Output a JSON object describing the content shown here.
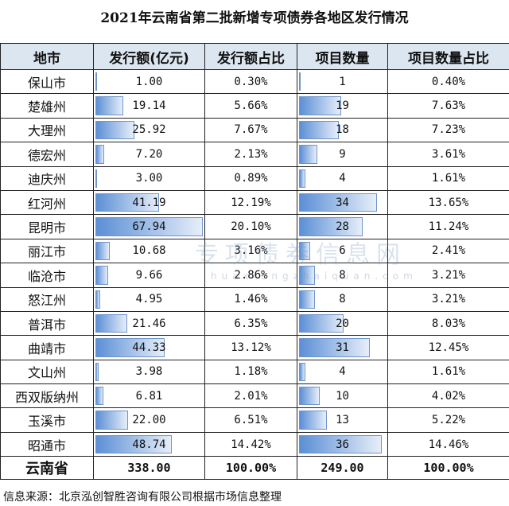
{
  "title": "2021年云南省第二批新增专项债券各地区发行情况",
  "headers": [
    "地市",
    "发行额(亿元)",
    "发行额占比",
    "项目数量",
    "项目数量占比"
  ],
  "rows": [
    {
      "name": "保山市",
      "amount": "1.00",
      "amount_pct": "0.30%",
      "count": "1",
      "count_pct": "0.40%"
    },
    {
      "name": "楚雄州",
      "amount": "19.14",
      "amount_pct": "5.66%",
      "count": "19",
      "count_pct": "7.63%"
    },
    {
      "name": "大理州",
      "amount": "25.92",
      "amount_pct": "7.67%",
      "count": "18",
      "count_pct": "7.23%"
    },
    {
      "name": "德宏州",
      "amount": "7.20",
      "amount_pct": "2.13%",
      "count": "9",
      "count_pct": "3.61%"
    },
    {
      "name": "迪庆州",
      "amount": "3.00",
      "amount_pct": "0.89%",
      "count": "4",
      "count_pct": "1.61%"
    },
    {
      "name": "红河州",
      "amount": "41.19",
      "amount_pct": "12.19%",
      "count": "34",
      "count_pct": "13.65%"
    },
    {
      "name": "昆明市",
      "amount": "67.94",
      "amount_pct": "20.10%",
      "count": "28",
      "count_pct": "11.24%"
    },
    {
      "name": "丽江市",
      "amount": "10.68",
      "amount_pct": "3.16%",
      "count": "6",
      "count_pct": "2.41%"
    },
    {
      "name": "临沧市",
      "amount": "9.66",
      "amount_pct": "2.86%",
      "count": "8",
      "count_pct": "3.21%"
    },
    {
      "name": "怒江州",
      "amount": "4.95",
      "amount_pct": "1.46%",
      "count": "8",
      "count_pct": "3.21%"
    },
    {
      "name": "普洱市",
      "amount": "21.46",
      "amount_pct": "6.35%",
      "count": "20",
      "count_pct": "8.03%"
    },
    {
      "name": "曲靖市",
      "amount": "44.33",
      "amount_pct": "13.12%",
      "count": "31",
      "count_pct": "12.45%"
    },
    {
      "name": "文山州",
      "amount": "3.98",
      "amount_pct": "1.18%",
      "count": "4",
      "count_pct": "1.61%"
    },
    {
      "name": "西双版纳州",
      "amount": "6.81",
      "amount_pct": "2.01%",
      "count": "10",
      "count_pct": "4.02%"
    },
    {
      "name": "玉溪市",
      "amount": "22.00",
      "amount_pct": "6.51%",
      "count": "13",
      "count_pct": "5.22%"
    },
    {
      "name": "昭通市",
      "amount": "48.74",
      "amount_pct": "14.42%",
      "count": "36",
      "count_pct": "14.46%"
    }
  ],
  "total": {
    "name": "云南省",
    "amount": "338.00",
    "amount_pct": "100.00%",
    "count": "249.00",
    "count_pct": "100.00%"
  },
  "footer": "信息来源：北京泓创智胜咨询有限公司根据市场信息整理",
  "watermark": {
    "text": "专项债券信息网",
    "url": "huaxiangzhaiquan.com"
  },
  "colors": {
    "header_bg": "#dce6f1",
    "bar": "#5b8fd6"
  }
}
